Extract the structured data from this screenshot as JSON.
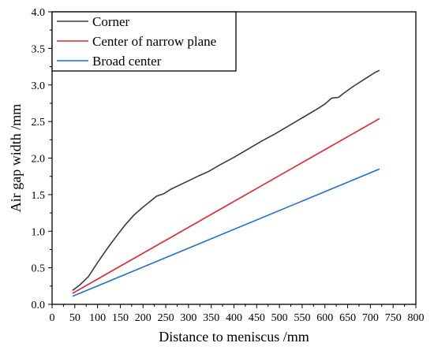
{
  "chart_data": {
    "type": "line",
    "title": "",
    "xlabel": "Distance to meniscus /mm",
    "ylabel": "Air gap width /mm",
    "xlim": [
      0,
      800
    ],
    "ylim": [
      0.0,
      4.0
    ],
    "x_ticks": [
      "0",
      "50",
      "100",
      "150",
      "200",
      "250",
      "300",
      "350",
      "400",
      "450",
      "500",
      "550",
      "600",
      "650",
      "700",
      "750",
      "800"
    ],
    "y_ticks": [
      "0.0",
      "0.5",
      "1.0",
      "1.5",
      "2.0",
      "2.5",
      "3.0",
      "3.5",
      "4.0"
    ],
    "grid": false,
    "legend_position": "top-left",
    "series": [
      {
        "name": "Corner",
        "color": "#3a3a3a",
        "x": [
          45,
          60,
          80,
          100,
          120,
          140,
          160,
          180,
          200,
          220,
          230,
          245,
          260,
          280,
          300,
          320,
          345,
          370,
          400,
          430,
          460,
          490,
          520,
          550,
          580,
          600,
          615,
          630,
          640,
          660,
          680,
          700,
          710,
          720
        ],
        "y": [
          0.19,
          0.26,
          0.38,
          0.57,
          0.75,
          0.92,
          1.08,
          1.22,
          1.33,
          1.43,
          1.48,
          1.51,
          1.57,
          1.63,
          1.69,
          1.75,
          1.82,
          1.91,
          2.01,
          2.12,
          2.23,
          2.33,
          2.44,
          2.55,
          2.66,
          2.74,
          2.82,
          2.83,
          2.88,
          2.97,
          3.05,
          3.13,
          3.17,
          3.2
        ]
      },
      {
        "name": "Center of narrow plane",
        "color": "#e8212b",
        "x": [
          45,
          720
        ],
        "y": [
          0.15,
          2.54
        ]
      },
      {
        "name": "Broad center",
        "color": "#1f6fd1",
        "x": [
          45,
          720
        ],
        "y": [
          0.11,
          1.85
        ]
      }
    ]
  }
}
